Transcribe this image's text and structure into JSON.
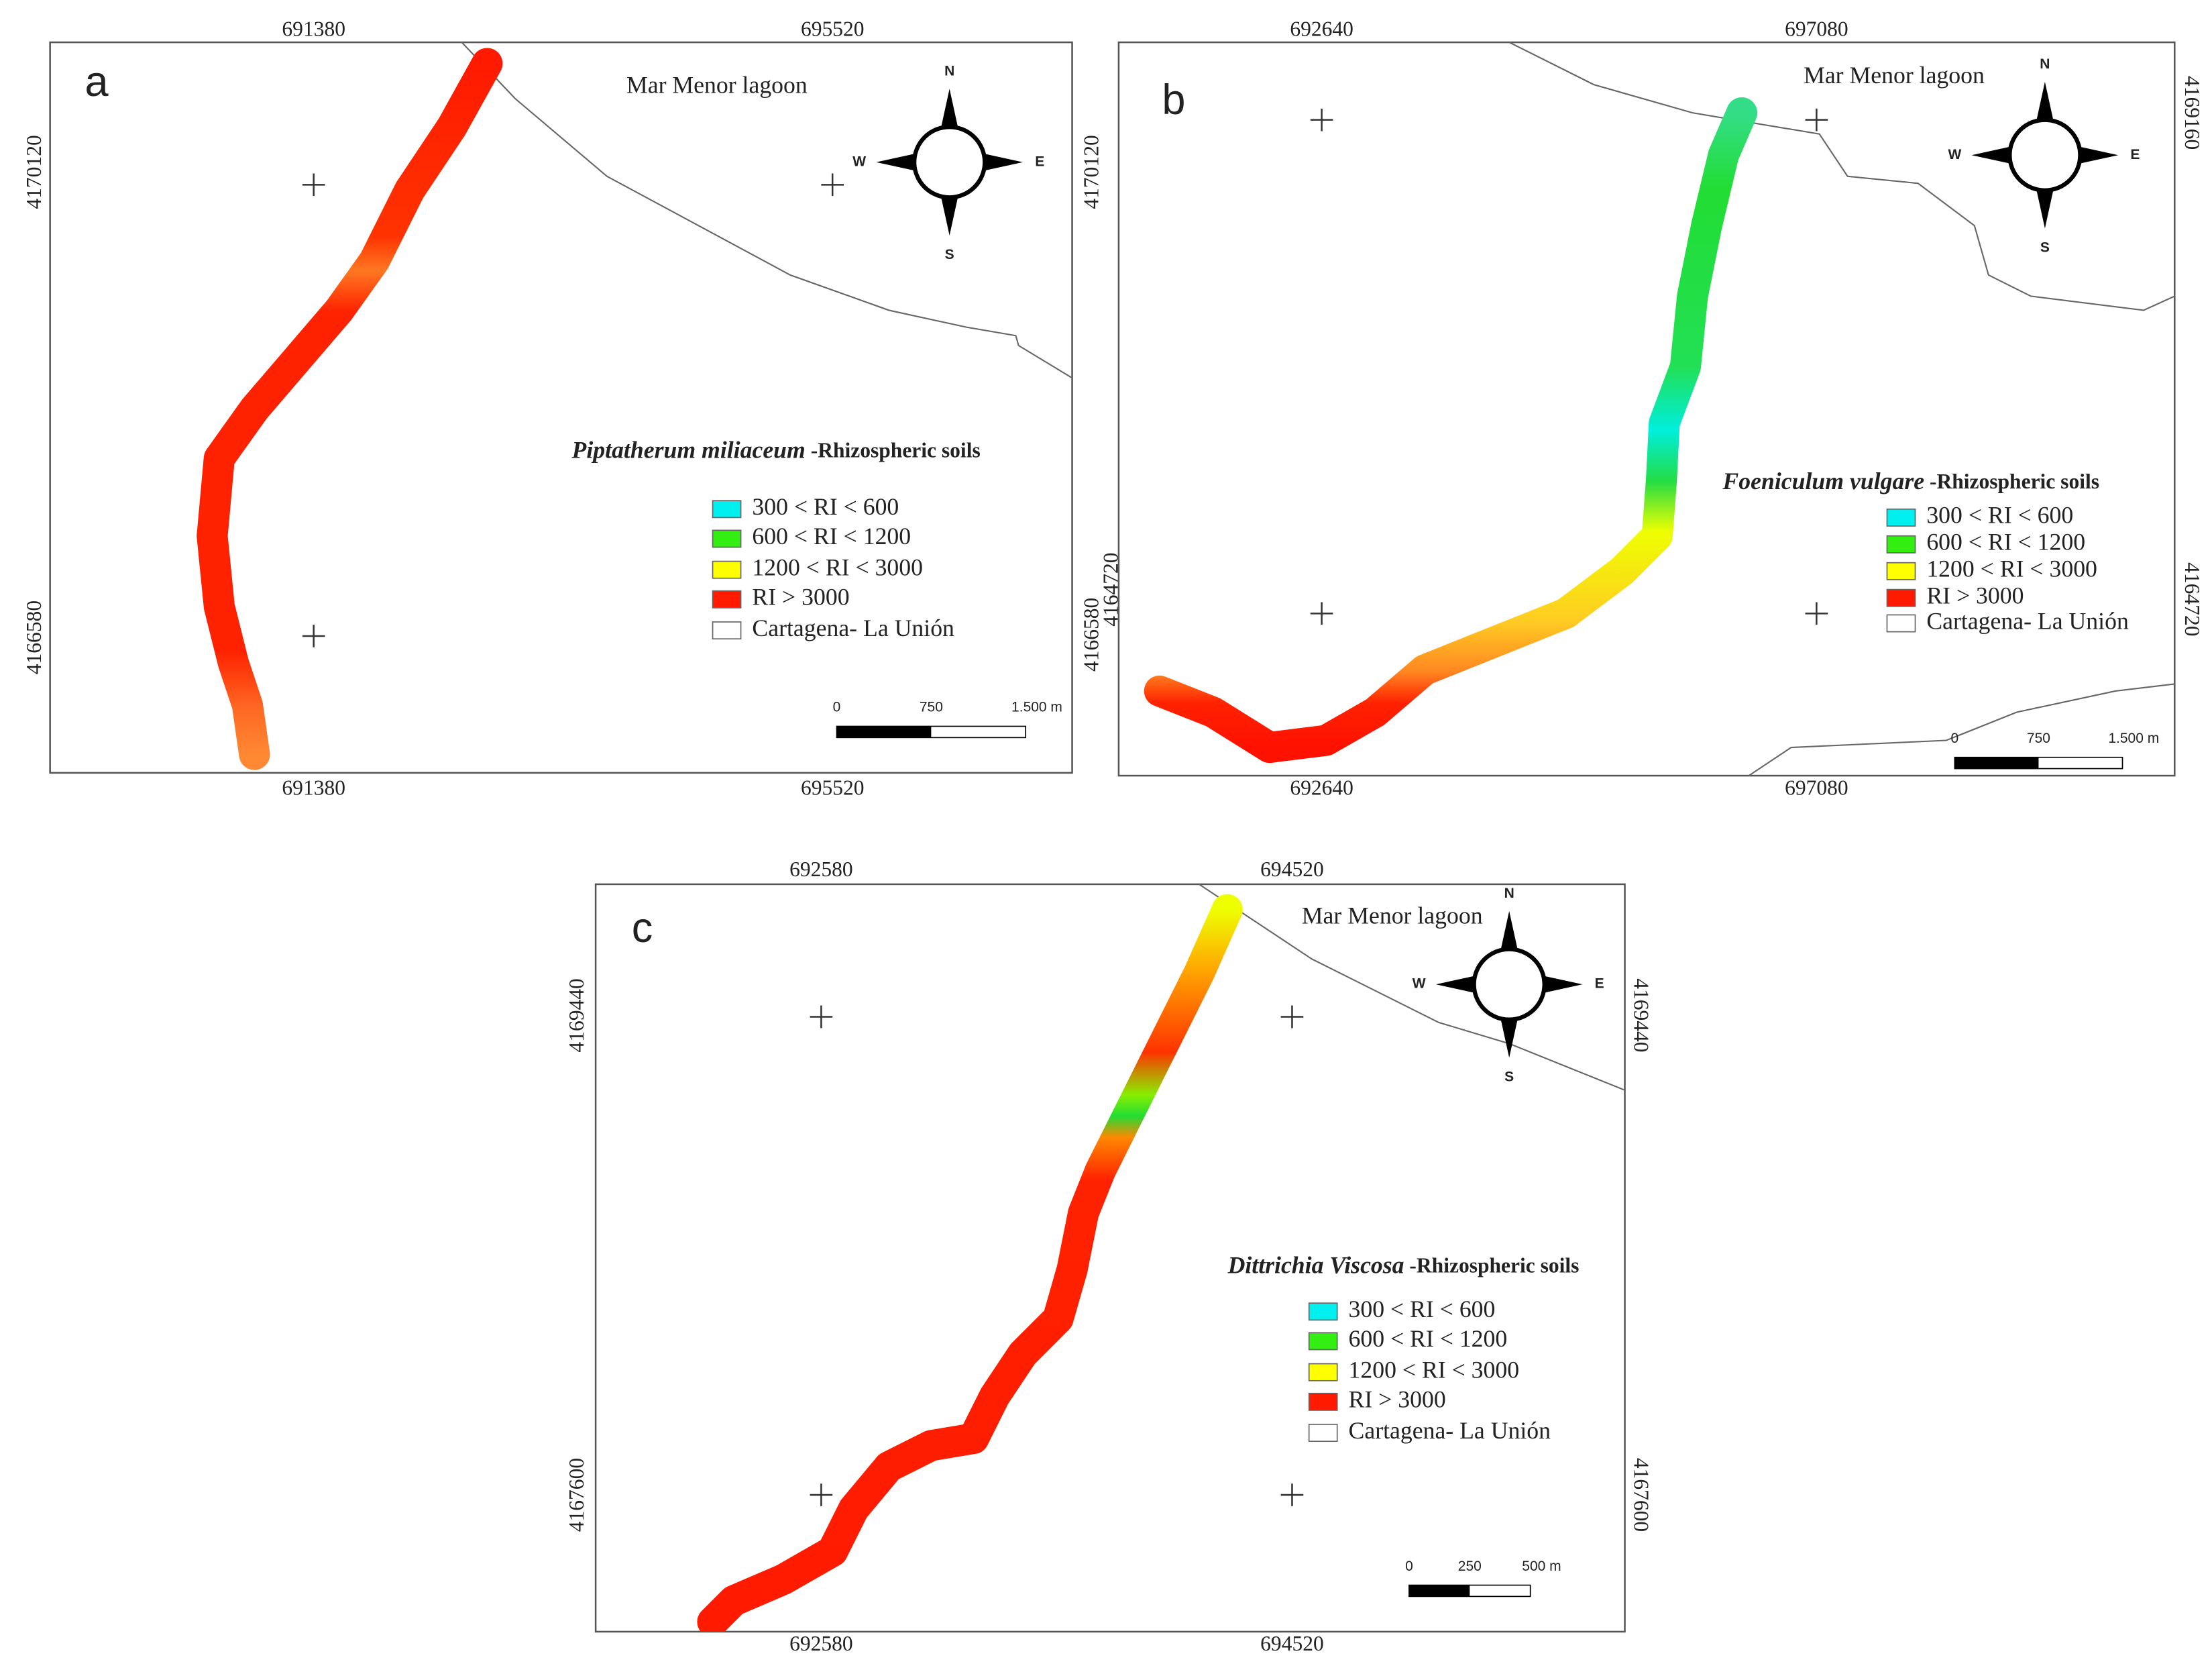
{
  "panels": [
    {
      "label": "a",
      "x_labels_top": [
        "691380",
        "695520"
      ],
      "x_labels_bottom": [
        "691380",
        "695520"
      ],
      "y_labels_left": [
        "4170120",
        "4166580"
      ],
      "y_labels_right": [],
      "lagoon": "Mar Menor lagoon",
      "compass": {
        "n": "N",
        "e": "E",
        "s": "S",
        "w": "W"
      },
      "legend": {
        "species": "Piptatherum miliaceum",
        "suffix": " -Rhizospheric soils",
        "entries": [
          {
            "label": "300 < RI < 600",
            "color": "#00f0f0"
          },
          {
            "label": "600 < RI < 1200",
            "color": "#33ee11"
          },
          {
            "label": "1200 < RI < 3000",
            "color": "#ffff00"
          },
          {
            "label": "RI > 3000",
            "color": "#ff1a00"
          },
          {
            "label": "Cartagena- La Unión",
            "color": "#ffffff"
          }
        ]
      },
      "scale": [
        "0",
        "750",
        "1.500 m"
      ]
    },
    {
      "label": "b",
      "x_labels_top": [
        "692640",
        "697080"
      ],
      "x_labels_bottom": [
        "692640",
        "697080"
      ],
      "y_labels_left": [
        "4170120",
        "4166580",
        "4164720"
      ],
      "y_labels_right": [
        "4169160",
        "4164720"
      ],
      "lagoon": "Mar Menor lagoon",
      "compass": {
        "n": "N",
        "e": "E",
        "s": "S",
        "w": "W"
      },
      "legend": {
        "species": "Foeniculum vulgare",
        "suffix": " -Rhizospheric soils",
        "entries": [
          {
            "label": "300 < RI < 600",
            "color": "#00f0f0"
          },
          {
            "label": "600 < RI < 1200",
            "color": "#33ee11"
          },
          {
            "label": "1200 < RI < 3000",
            "color": "#ffff00"
          },
          {
            "label": "RI > 3000",
            "color": "#ff1a00"
          },
          {
            "label": "Cartagena- La Unión",
            "color": "#ffffff"
          }
        ]
      },
      "scale": [
        "0",
        "750",
        "1.500 m"
      ]
    },
    {
      "label": "c",
      "x_labels_top": [
        "692580",
        "694520"
      ],
      "x_labels_bottom": [
        "692580",
        "694520"
      ],
      "y_labels_left": [
        "4169440",
        "4167600"
      ],
      "y_labels_right": [
        "4169440",
        "4167600"
      ],
      "lagoon": "Mar Menor lagoon",
      "compass": {
        "n": "N",
        "e": "E",
        "s": "S",
        "w": "W"
      },
      "legend": {
        "species": "Dittrichia Viscosa",
        "suffix": " -Rhizospheric soils",
        "entries": [
          {
            "label": "300 < RI < 600",
            "color": "#00f0f0"
          },
          {
            "label": "600 < RI < 1200",
            "color": "#33ee11"
          },
          {
            "label": "1200 < RI < 3000",
            "color": "#ffff00"
          },
          {
            "label": "RI > 3000",
            "color": "#ff1a00"
          },
          {
            "label": "Cartagena- La Unión",
            "color": "#ffffff"
          }
        ]
      },
      "scale": [
        "0",
        "250",
        "500 m"
      ]
    }
  ]
}
